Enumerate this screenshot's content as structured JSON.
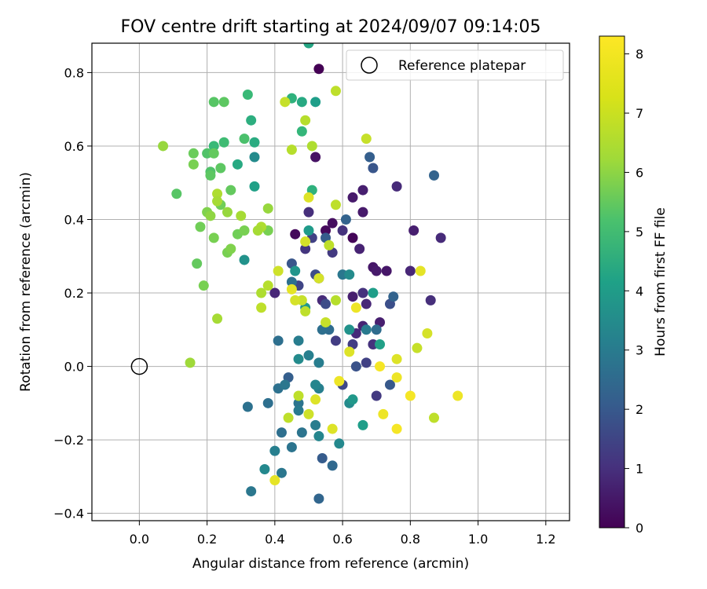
{
  "chart_data": {
    "type": "scatter",
    "title": "FOV centre drift starting at 2024/09/07 09:14:05",
    "xlabel": "Angular distance from reference (arcmin)",
    "ylabel": "Rotation from reference (arcmin)",
    "xlim": [
      -0.14,
      1.27
    ],
    "ylim": [
      -0.42,
      0.88
    ],
    "xticks": [
      0.0,
      0.2,
      0.4,
      0.6,
      0.8,
      1.0,
      1.2
    ],
    "xtick_labels": [
      "0.0",
      "0.2",
      "0.4",
      "0.6",
      "0.8",
      "1.0",
      "1.2"
    ],
    "yticks": [
      -0.4,
      -0.2,
      0.0,
      0.2,
      0.4,
      0.6,
      0.8
    ],
    "ytick_labels": [
      "−0.4",
      "−0.2",
      "0.0",
      "0.2",
      "0.4",
      "0.6",
      "0.8"
    ],
    "grid": true,
    "legend": {
      "position": "top-right",
      "entries": [
        "Reference platepar"
      ]
    },
    "reference_point": {
      "name": "Reference platepar",
      "x": 0.0,
      "y": 0.0
    },
    "colorbar": {
      "label": "Hours from first FF file",
      "min": 0,
      "max": 8.3,
      "ticks": [
        0,
        1,
        2,
        3,
        4,
        5,
        6,
        7,
        8
      ],
      "tick_labels": [
        "0",
        "1",
        "2",
        "3",
        "4",
        "5",
        "6",
        "7",
        "8"
      ],
      "colormap": "viridis"
    },
    "series": [
      {
        "points": [
          [
            0.53,
            0.81,
            0.0
          ],
          [
            0.46,
            0.36,
            0.2
          ],
          [
            0.55,
            0.37,
            0.2
          ],
          [
            0.63,
            0.35,
            0.1
          ],
          [
            0.57,
            0.39,
            0.3
          ],
          [
            0.52,
            0.57,
            0.4
          ],
          [
            0.63,
            0.46,
            0.6
          ],
          [
            0.66,
            0.48,
            0.7
          ],
          [
            0.66,
            0.42,
            0.6
          ],
          [
            0.69,
            0.27,
            0.5
          ],
          [
            0.7,
            0.26,
            0.6
          ],
          [
            0.65,
            0.32,
            0.8
          ],
          [
            0.6,
            0.37,
            1.2
          ],
          [
            0.57,
            0.31,
            1.4
          ],
          [
            0.49,
            0.32,
            1.3
          ],
          [
            0.5,
            0.42,
            1.1
          ],
          [
            0.54,
            0.18,
            1.0
          ],
          [
            0.4,
            0.2,
            0.9
          ],
          [
            0.63,
            0.19,
            0.7
          ],
          [
            0.66,
            0.2,
            1.2
          ],
          [
            0.67,
            0.17,
            0.9
          ],
          [
            0.64,
            0.09,
            1.0
          ],
          [
            0.66,
            0.11,
            0.8
          ],
          [
            0.69,
            0.06,
            1.2
          ],
          [
            0.71,
            0.12,
            0.7
          ],
          [
            0.73,
            0.26,
            0.5
          ],
          [
            0.76,
            0.49,
            1.0
          ],
          [
            0.81,
            0.37,
            0.7
          ],
          [
            0.8,
            0.26,
            0.9
          ],
          [
            0.86,
            0.18,
            1.1
          ],
          [
            0.89,
            0.35,
            1.0
          ],
          [
            0.63,
            0.06,
            1.5
          ],
          [
            0.7,
            -0.08,
            1.4
          ],
          [
            0.6,
            -0.05,
            1.8
          ],
          [
            0.58,
            0.07,
            1.5
          ],
          [
            0.52,
            0.25,
            1.9
          ],
          [
            0.47,
            0.22,
            1.7
          ],
          [
            0.51,
            0.35,
            1.6
          ],
          [
            0.53,
            0.24,
            1.8
          ],
          [
            0.55,
            0.17,
            1.9
          ],
          [
            0.64,
            0.0,
            2.1
          ],
          [
            0.67,
            0.01,
            1.6
          ],
          [
            0.74,
            0.17,
            2.0
          ],
          [
            0.75,
            0.19,
            2.6
          ],
          [
            0.74,
            -0.05,
            2.3
          ],
          [
            0.68,
            0.57,
            2.5
          ],
          [
            0.69,
            0.54,
            2.2
          ],
          [
            0.87,
            0.52,
            2.6
          ],
          [
            0.45,
            0.28,
            2.2
          ],
          [
            0.55,
            0.35,
            2.4
          ],
          [
            0.61,
            0.4,
            2.6
          ],
          [
            0.54,
            -0.25,
            2.4
          ],
          [
            0.53,
            -0.36,
            2.7
          ],
          [
            0.44,
            -0.03,
            2.5
          ],
          [
            0.57,
            -0.27,
            2.8
          ],
          [
            0.56,
            0.1,
            2.9
          ],
          [
            0.7,
            0.1,
            2.9
          ],
          [
            0.67,
            0.1,
            3.4
          ],
          [
            0.6,
            0.25,
            3.3
          ],
          [
            0.54,
            0.1,
            3.0
          ],
          [
            0.45,
            0.23,
            3.0
          ],
          [
            0.48,
            -0.18,
            3.2
          ],
          [
            0.53,
            0.01,
            3.5
          ],
          [
            0.53,
            -0.06,
            3.6
          ],
          [
            0.52,
            -0.05,
            3.8
          ],
          [
            0.5,
            0.03,
            3.6
          ],
          [
            0.47,
            -0.1,
            3.2
          ],
          [
            0.41,
            -0.06,
            3.1
          ],
          [
            0.43,
            -0.05,
            3.3
          ],
          [
            0.47,
            -0.12,
            3.4
          ],
          [
            0.45,
            -0.22,
            3.2
          ],
          [
            0.42,
            -0.18,
            3.0
          ],
          [
            0.4,
            -0.23,
            3.6
          ],
          [
            0.42,
            -0.29,
            3.3
          ],
          [
            0.37,
            -0.28,
            3.9
          ],
          [
            0.33,
            -0.34,
            3.3
          ],
          [
            0.32,
            -0.11,
            3.1
          ],
          [
            0.38,
            -0.1,
            3.0
          ],
          [
            0.41,
            0.07,
            3.0
          ],
          [
            0.47,
            0.07,
            3.5
          ],
          [
            0.47,
            0.02,
            4.0
          ],
          [
            0.52,
            -0.16,
            3.5
          ],
          [
            0.53,
            -0.19,
            3.8
          ],
          [
            0.59,
            -0.21,
            3.9
          ],
          [
            0.62,
            -0.1,
            4.0
          ],
          [
            0.63,
            -0.09,
            4.4
          ],
          [
            0.66,
            -0.16,
            4.6
          ],
          [
            0.62,
            0.25,
            4.0
          ],
          [
            0.69,
            0.2,
            4.6
          ],
          [
            0.62,
            0.1,
            4.2
          ],
          [
            0.71,
            0.06,
            4.7
          ],
          [
            0.46,
            0.26,
            4.3
          ],
          [
            0.34,
            0.57,
            4.0
          ],
          [
            0.31,
            0.29,
            4.2
          ],
          [
            0.34,
            0.49,
            4.7
          ],
          [
            0.5,
            0.37,
            4.5
          ],
          [
            0.49,
            0.16,
            4.4
          ],
          [
            0.52,
            0.72,
            4.6
          ],
          [
            0.48,
            0.72,
            5.0
          ],
          [
            0.45,
            0.73,
            5.3
          ],
          [
            0.5,
            0.88,
            4.9
          ],
          [
            0.51,
            0.48,
            5.3
          ],
          [
            0.48,
            0.64,
            5.5
          ],
          [
            0.29,
            0.55,
            5.0
          ],
          [
            0.34,
            0.61,
            5.1
          ],
          [
            0.33,
            0.67,
            5.2
          ],
          [
            0.32,
            0.74,
            5.6
          ],
          [
            0.22,
            0.6,
            5.6
          ],
          [
            0.25,
            0.61,
            5.7
          ],
          [
            0.31,
            0.62,
            5.9
          ],
          [
            0.22,
            0.72,
            6.1
          ],
          [
            0.25,
            0.72,
            6.2
          ],
          [
            0.2,
            0.58,
            6.0
          ],
          [
            0.21,
            0.53,
            6.0
          ],
          [
            0.22,
            0.58,
            6.3
          ],
          [
            0.24,
            0.54,
            6.2
          ],
          [
            0.16,
            0.58,
            6.4
          ],
          [
            0.16,
            0.55,
            6.6
          ],
          [
            0.11,
            0.47,
            6.1
          ],
          [
            0.21,
            0.52,
            6.2
          ],
          [
            0.27,
            0.48,
            6.3
          ],
          [
            0.24,
            0.44,
            6.5
          ],
          [
            0.2,
            0.42,
            6.7
          ],
          [
            0.18,
            0.38,
            6.5
          ],
          [
            0.22,
            0.35,
            6.6
          ],
          [
            0.17,
            0.28,
            6.3
          ],
          [
            0.19,
            0.22,
            6.6
          ],
          [
            0.26,
            0.31,
            6.6
          ],
          [
            0.27,
            0.32,
            6.7
          ],
          [
            0.29,
            0.36,
            6.5
          ],
          [
            0.31,
            0.37,
            6.6
          ],
          [
            0.38,
            0.37,
            6.6
          ],
          [
            0.38,
            0.43,
            7.0
          ],
          [
            0.3,
            0.41,
            7.2
          ],
          [
            0.26,
            0.42,
            7.0
          ],
          [
            0.23,
            0.47,
            7.3
          ],
          [
            0.23,
            0.45,
            7.2
          ],
          [
            0.21,
            0.41,
            6.9
          ],
          [
            0.07,
            0.6,
            7.0
          ],
          [
            0.15,
            0.01,
            7.1
          ],
          [
            0.23,
            0.13,
            7.2
          ],
          [
            0.36,
            0.2,
            7.3
          ],
          [
            0.38,
            0.22,
            7.4
          ],
          [
            0.36,
            0.16,
            7.5
          ],
          [
            0.36,
            0.38,
            7.3
          ],
          [
            0.35,
            0.37,
            7.2
          ],
          [
            0.43,
            0.72,
            7.6
          ],
          [
            0.45,
            0.59,
            7.4
          ],
          [
            0.49,
            0.67,
            7.4
          ],
          [
            0.51,
            0.6,
            7.3
          ],
          [
            0.58,
            0.75,
            7.5
          ],
          [
            0.67,
            0.62,
            7.6
          ],
          [
            0.58,
            0.44,
            7.5
          ],
          [
            0.56,
            0.33,
            7.5
          ],
          [
            0.49,
            0.34,
            7.8
          ],
          [
            0.41,
            0.26,
            7.7
          ],
          [
            0.5,
            0.46,
            7.9
          ],
          [
            0.53,
            0.24,
            7.8
          ],
          [
            0.55,
            0.12,
            7.6
          ],
          [
            0.58,
            0.18,
            7.4
          ],
          [
            0.49,
            0.15,
            7.5
          ],
          [
            0.48,
            0.18,
            7.6
          ],
          [
            0.46,
            0.18,
            7.8
          ],
          [
            0.45,
            0.21,
            8.0
          ],
          [
            0.64,
            0.16,
            8.1
          ],
          [
            0.62,
            0.04,
            7.9
          ],
          [
            0.59,
            -0.04,
            8.1
          ],
          [
            0.57,
            -0.17,
            7.9
          ],
          [
            0.52,
            -0.09,
            7.9
          ],
          [
            0.5,
            -0.13,
            7.7
          ],
          [
            0.47,
            -0.08,
            7.5
          ],
          [
            0.44,
            -0.14,
            7.5
          ],
          [
            0.4,
            -0.31,
            8.0
          ],
          [
            0.71,
            0.0,
            8.2
          ],
          [
            0.72,
            -0.13,
            8.1
          ],
          [
            0.76,
            -0.17,
            8.2
          ],
          [
            0.76,
            -0.03,
            8.1
          ],
          [
            0.8,
            -0.08,
            8.2
          ],
          [
            0.76,
            0.02,
            7.9
          ],
          [
            0.82,
            0.05,
            7.6
          ],
          [
            0.85,
            0.09,
            7.8
          ],
          [
            0.87,
            -0.14,
            7.5
          ],
          [
            0.94,
            -0.08,
            8.1
          ],
          [
            0.83,
            0.26,
            8.0
          ]
        ]
      }
    ]
  }
}
